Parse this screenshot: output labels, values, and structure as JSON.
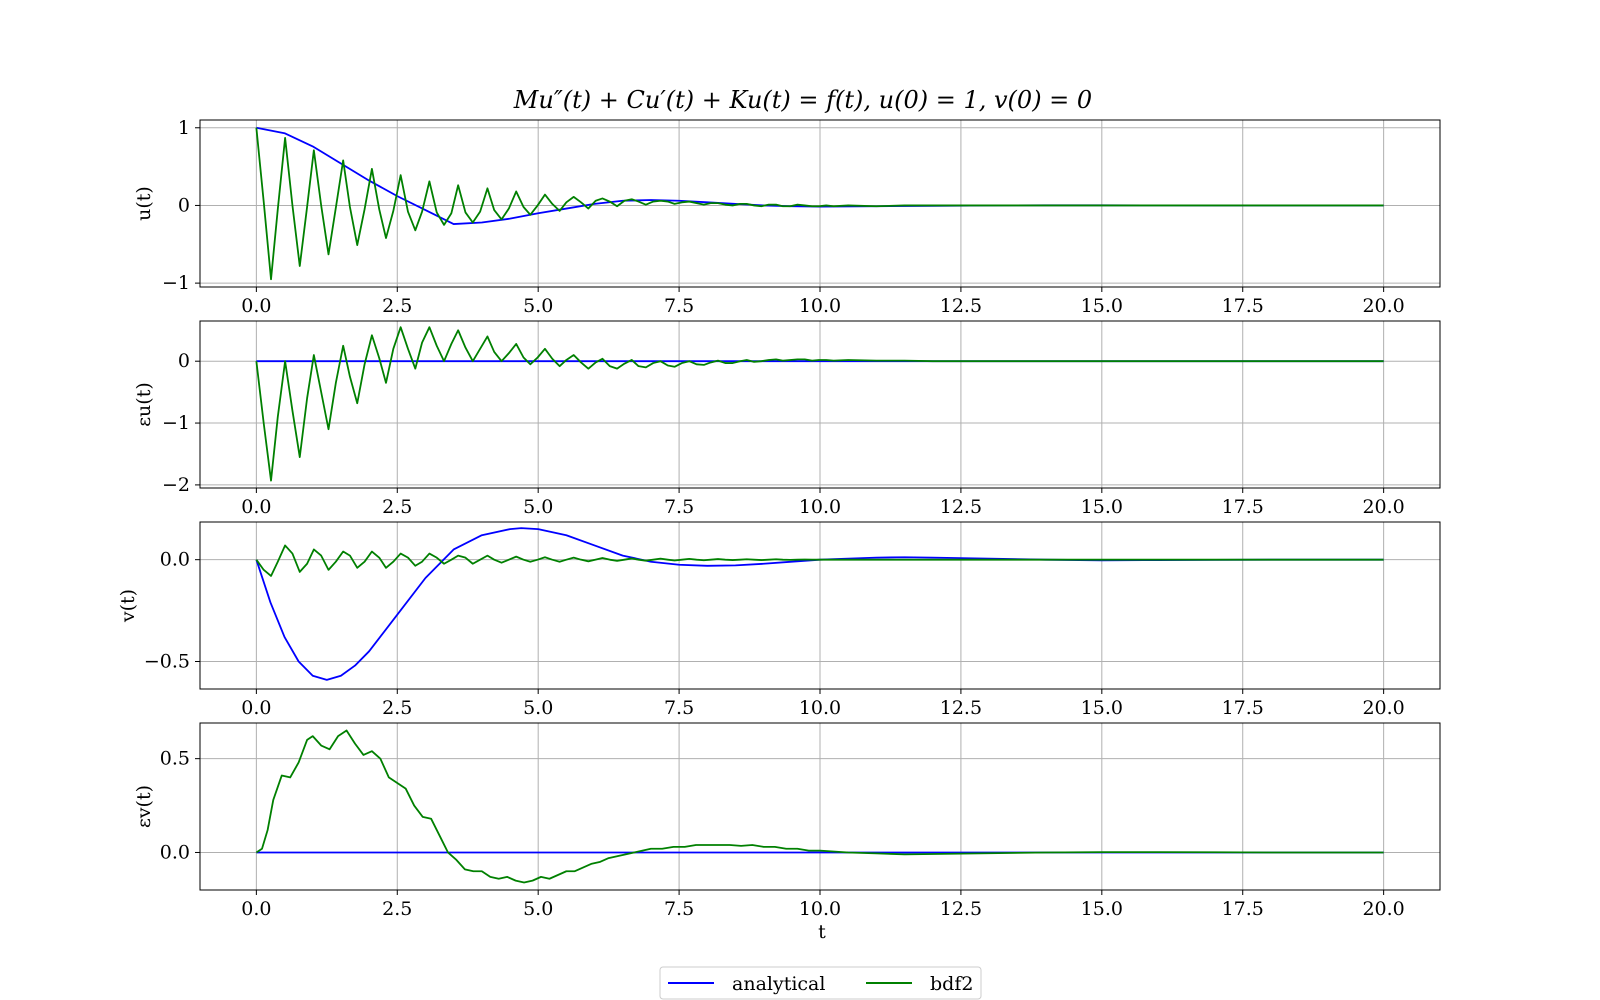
{
  "figure": {
    "title": "Mu″(t) + Cu′(t) + Ku(t) = f(t), u(0) = 1, v(0) = 0",
    "legend": {
      "placement": "bottom-center",
      "ncol": 2
    },
    "colors": {
      "analytical": "#0000ff",
      "bdf2": "#008000",
      "grid": "#b0b0b0"
    }
  },
  "chart_data": [
    {
      "type": "line",
      "ylabel": "u(t)",
      "xlabel": "",
      "xlim": [
        -1,
        21
      ],
      "ylim": [
        -1.05,
        1.1
      ],
      "xticks": [
        0.0,
        2.5,
        5.0,
        7.5,
        10.0,
        12.5,
        15.0,
        17.5,
        20.0
      ],
      "xtick_labels": [
        "0.0",
        "2.5",
        "5.0",
        "7.5",
        "10.0",
        "12.5",
        "15.0",
        "17.5",
        "20.0"
      ],
      "yticks": [
        -1,
        0,
        1
      ],
      "ytick_labels": [
        "−1",
        "0",
        "1"
      ],
      "grid": true,
      "series": [
        {
          "name": "analytical",
          "color": "#0000ff",
          "x": [
            0,
            0.5,
            1,
            1.5,
            2,
            2.5,
            3,
            3.5,
            4,
            4.5,
            5,
            5.5,
            6,
            6.5,
            7,
            7.5,
            8,
            8.5,
            9,
            9.5,
            10,
            11,
            12,
            13,
            14,
            15,
            16,
            17,
            18,
            19,
            20
          ],
          "y": [
            1.0,
            0.93,
            0.76,
            0.54,
            0.32,
            0.12,
            -0.06,
            -0.24,
            -0.22,
            -0.17,
            -0.1,
            -0.04,
            0.02,
            0.06,
            0.07,
            0.06,
            0.04,
            0.02,
            0.0,
            -0.01,
            -0.015,
            -0.01,
            -0.005,
            0.0,
            0.002,
            0.002,
            0.001,
            0.0,
            0.0,
            0.0,
            0.0
          ]
        },
        {
          "name": "bdf2",
          "color": "#008000",
          "x": [
            0,
            0.13,
            0.26,
            0.38,
            0.51,
            0.64,
            0.77,
            0.9,
            1.02,
            1.15,
            1.28,
            1.41,
            1.54,
            1.66,
            1.79,
            1.92,
            2.05,
            2.18,
            2.3,
            2.43,
            2.56,
            2.69,
            2.82,
            2.94,
            3.07,
            3.2,
            3.33,
            3.46,
            3.58,
            3.71,
            3.84,
            3.97,
            4.1,
            4.22,
            4.35,
            4.48,
            4.61,
            4.74,
            4.86,
            4.99,
            5.12,
            5.25,
            5.38,
            5.5,
            5.63,
            5.76,
            5.89,
            6.02,
            6.14,
            6.27,
            6.4,
            6.53,
            6.66,
            6.78,
            6.91,
            7.04,
            7.17,
            7.3,
            7.42,
            7.55,
            7.68,
            7.81,
            7.94,
            8.06,
            8.19,
            8.32,
            8.45,
            8.58,
            8.7,
            8.83,
            8.96,
            9.09,
            9.22,
            9.34,
            9.47,
            9.6,
            9.73,
            9.86,
            9.98,
            10.11,
            10.24,
            10.5,
            11,
            11.5,
            12,
            13,
            14,
            15,
            16,
            17,
            18,
            19,
            20
          ],
          "y": [
            1.0,
            0.05,
            -0.95,
            -0.05,
            0.87,
            0.0,
            -0.78,
            -0.02,
            0.71,
            0.0,
            -0.63,
            -0.03,
            0.58,
            -0.02,
            -0.51,
            -0.05,
            0.47,
            -0.05,
            -0.42,
            -0.07,
            0.39,
            -0.08,
            -0.32,
            -0.08,
            0.31,
            -0.09,
            -0.25,
            -0.1,
            0.26,
            -0.09,
            -0.22,
            -0.08,
            0.22,
            -0.06,
            -0.18,
            -0.04,
            0.18,
            -0.02,
            -0.12,
            0.0,
            0.14,
            0.02,
            -0.07,
            0.04,
            0.11,
            0.04,
            -0.04,
            0.06,
            0.09,
            0.05,
            -0.01,
            0.06,
            0.08,
            0.05,
            0.01,
            0.05,
            0.06,
            0.05,
            0.02,
            0.04,
            0.05,
            0.03,
            0.01,
            0.03,
            0.03,
            0.01,
            0.0,
            0.02,
            0.02,
            0.0,
            -0.01,
            0.01,
            0.01,
            -0.01,
            -0.01,
            0.01,
            0.0,
            -0.01,
            -0.01,
            0.0,
            -0.01,
            0.0,
            -0.01,
            0.0,
            0.0,
            0.0,
            0.0,
            0.0,
            0.0,
            0.0,
            0.0,
            0.0,
            0.0
          ]
        }
      ]
    },
    {
      "type": "line",
      "ylabel": "εu(t)",
      "xlabel": "",
      "xlim": [
        -1,
        21
      ],
      "ylim": [
        -2.05,
        0.65
      ],
      "xticks": [
        0.0,
        2.5,
        5.0,
        7.5,
        10.0,
        12.5,
        15.0,
        17.5,
        20.0
      ],
      "xtick_labels": [
        "0.0",
        "2.5",
        "5.0",
        "7.5",
        "10.0",
        "12.5",
        "15.0",
        "17.5",
        "20.0"
      ],
      "yticks": [
        -2,
        -1,
        0
      ],
      "ytick_labels": [
        "−2",
        "−1",
        "0"
      ],
      "grid": true,
      "series": [
        {
          "name": "analytical",
          "color": "#0000ff",
          "x": [
            0,
            20
          ],
          "y": [
            0,
            0
          ]
        },
        {
          "name": "bdf2",
          "color": "#008000",
          "x": [
            0,
            0.13,
            0.26,
            0.38,
            0.51,
            0.64,
            0.77,
            0.9,
            1.02,
            1.15,
            1.28,
            1.41,
            1.54,
            1.66,
            1.79,
            1.92,
            2.05,
            2.18,
            2.3,
            2.43,
            2.56,
            2.69,
            2.82,
            2.94,
            3.07,
            3.2,
            3.33,
            3.46,
            3.58,
            3.71,
            3.84,
            3.97,
            4.1,
            4.22,
            4.35,
            4.48,
            4.61,
            4.74,
            4.86,
            4.99,
            5.12,
            5.25,
            5.38,
            5.5,
            5.63,
            5.76,
            5.89,
            6.02,
            6.14,
            6.27,
            6.4,
            6.53,
            6.66,
            6.78,
            6.91,
            7.04,
            7.17,
            7.3,
            7.42,
            7.55,
            7.68,
            7.81,
            7.94,
            8.06,
            8.19,
            8.32,
            8.45,
            8.58,
            8.7,
            8.83,
            8.96,
            9.09,
            9.22,
            9.34,
            9.47,
            9.6,
            9.73,
            9.86,
            9.98,
            10.11,
            10.24,
            10.5,
            11,
            11.5,
            12,
            13,
            14,
            15,
            16,
            17,
            18,
            19,
            20
          ],
          "y": [
            0.0,
            -1.0,
            -1.93,
            -0.9,
            0.0,
            -0.8,
            -1.55,
            -0.6,
            0.1,
            -0.5,
            -1.1,
            -0.35,
            0.25,
            -0.25,
            -0.68,
            -0.05,
            0.42,
            0.05,
            -0.35,
            0.2,
            0.55,
            0.2,
            -0.12,
            0.3,
            0.55,
            0.25,
            0.0,
            0.28,
            0.5,
            0.22,
            0.0,
            0.2,
            0.4,
            0.15,
            0.0,
            0.13,
            0.28,
            0.06,
            -0.05,
            0.06,
            0.2,
            0.04,
            -0.08,
            0.02,
            0.1,
            -0.02,
            -0.12,
            -0.02,
            0.04,
            -0.08,
            -0.12,
            -0.04,
            0.02,
            -0.08,
            -0.1,
            -0.03,
            0.0,
            -0.07,
            -0.09,
            -0.03,
            0.0,
            -0.05,
            -0.06,
            -0.02,
            0.01,
            -0.03,
            -0.03,
            0.0,
            0.02,
            -0.01,
            0.0,
            0.02,
            0.03,
            0.01,
            0.02,
            0.03,
            0.03,
            0.01,
            0.02,
            0.02,
            0.01,
            0.02,
            0.01,
            0.01,
            0.0,
            0.0,
            0.0,
            0.0,
            0.0,
            0.0,
            0.0,
            0.0,
            0.0
          ]
        }
      ]
    },
    {
      "type": "line",
      "ylabel": "v(t)",
      "xlabel": "",
      "xlim": [
        -1,
        21
      ],
      "ylim": [
        -0.635,
        0.185
      ],
      "xticks": [
        0.0,
        2.5,
        5.0,
        7.5,
        10.0,
        12.5,
        15.0,
        17.5,
        20.0
      ],
      "xtick_labels": [
        "0.0",
        "2.5",
        "5.0",
        "7.5",
        "10.0",
        "12.5",
        "15.0",
        "17.5",
        "20.0"
      ],
      "yticks": [
        -0.5,
        0.0
      ],
      "ytick_labels": [
        "−0.5",
        "0.0"
      ],
      "grid": true,
      "series": [
        {
          "name": "analytical",
          "color": "#0000ff",
          "x": [
            0,
            0.25,
            0.5,
            0.75,
            1,
            1.25,
            1.5,
            1.75,
            2,
            2.5,
            3,
            3.5,
            4,
            4.5,
            4.7,
            5,
            5.5,
            6,
            6.5,
            7,
            7.5,
            8,
            8.5,
            9,
            9.5,
            10,
            11,
            11.5,
            12,
            13,
            14,
            15,
            16,
            17,
            18,
            19,
            20
          ],
          "y": [
            0.0,
            -0.21,
            -0.38,
            -0.5,
            -0.57,
            -0.59,
            -0.57,
            -0.52,
            -0.45,
            -0.27,
            -0.09,
            0.05,
            0.12,
            0.15,
            0.155,
            0.15,
            0.12,
            0.07,
            0.02,
            -0.01,
            -0.025,
            -0.03,
            -0.028,
            -0.02,
            -0.01,
            0.0,
            0.01,
            0.012,
            0.01,
            0.005,
            0.0,
            -0.003,
            -0.002,
            -0.001,
            0.0,
            0.0,
            0.0
          ]
        },
        {
          "name": "bdf2",
          "color": "#008000",
          "x": [
            0,
            0.13,
            0.26,
            0.38,
            0.51,
            0.64,
            0.77,
            0.9,
            1.02,
            1.15,
            1.28,
            1.41,
            1.54,
            1.66,
            1.79,
            1.92,
            2.05,
            2.18,
            2.3,
            2.43,
            2.56,
            2.69,
            2.82,
            2.94,
            3.07,
            3.2,
            3.33,
            3.46,
            3.58,
            3.71,
            3.84,
            3.97,
            4.1,
            4.22,
            4.35,
            4.48,
            4.61,
            4.74,
            4.86,
            4.99,
            5.12,
            5.25,
            5.38,
            5.5,
            5.63,
            5.76,
            5.89,
            6.02,
            6.14,
            6.27,
            6.4,
            6.53,
            6.66,
            6.78,
            6.91,
            7.04,
            7.17,
            7.3,
            7.42,
            7.55,
            7.68,
            7.81,
            7.94,
            8.06,
            8.19,
            8.32,
            8.45,
            8.58,
            8.7,
            8.83,
            8.96,
            9.09,
            9.22,
            9.34,
            9.47,
            9.6,
            9.73,
            9.86,
            9.98,
            10.5,
            11,
            12,
            13,
            14,
            15,
            16,
            17,
            18,
            19,
            20
          ],
          "y": [
            0.0,
            -0.05,
            -0.08,
            -0.01,
            0.07,
            0.03,
            -0.06,
            -0.02,
            0.05,
            0.02,
            -0.05,
            -0.01,
            0.04,
            0.02,
            -0.04,
            -0.01,
            0.04,
            0.01,
            -0.04,
            -0.01,
            0.03,
            0.01,
            -0.03,
            -0.01,
            0.03,
            0.01,
            -0.02,
            0.0,
            0.02,
            0.01,
            -0.02,
            0.0,
            0.02,
            0.0,
            -0.015,
            0.0,
            0.015,
            0.0,
            -0.01,
            0.0,
            0.012,
            0.0,
            -0.01,
            0.0,
            0.01,
            0.0,
            -0.008,
            0.0,
            0.008,
            0.0,
            -0.006,
            0.0,
            0.006,
            0.0,
            -0.005,
            0.0,
            0.005,
            0.0,
            -0.004,
            0.0,
            0.004,
            0.0,
            -0.003,
            0.0,
            0.003,
            0.0,
            -0.002,
            0.0,
            0.002,
            0.0,
            -0.002,
            0.0,
            0.002,
            0.0,
            -0.001,
            0.0,
            0.001,
            0.0,
            0.0,
            0.0,
            0.0,
            0.0,
            0.0,
            0.0,
            0.0,
            0.0,
            0.0,
            0.0,
            0.0,
            0.0
          ]
        }
      ]
    },
    {
      "type": "line",
      "ylabel": "εv(t)",
      "xlabel": "t",
      "xlim": [
        -1,
        21
      ],
      "ylim": [
        -0.2,
        0.69
      ],
      "xticks": [
        0.0,
        2.5,
        5.0,
        7.5,
        10.0,
        12.5,
        15.0,
        17.5,
        20.0
      ],
      "xtick_labels": [
        "0.0",
        "2.5",
        "5.0",
        "7.5",
        "10.0",
        "12.5",
        "15.0",
        "17.5",
        "20.0"
      ],
      "yticks": [
        0.0,
        0.5
      ],
      "ytick_labels": [
        "0.0",
        "0.5"
      ],
      "grid": true,
      "series": [
        {
          "name": "analytical",
          "color": "#0000ff",
          "x": [
            0,
            20
          ],
          "y": [
            0,
            0
          ]
        },
        {
          "name": "bdf2",
          "color": "#008000",
          "x": [
            0,
            0.1,
            0.2,
            0.3,
            0.45,
            0.6,
            0.75,
            0.9,
            1.0,
            1.15,
            1.3,
            1.45,
            1.6,
            1.75,
            1.9,
            2.05,
            2.2,
            2.35,
            2.5,
            2.65,
            2.8,
            2.95,
            3.1,
            3.25,
            3.4,
            3.55,
            3.7,
            3.85,
            4.0,
            4.15,
            4.3,
            4.45,
            4.6,
            4.75,
            4.9,
            5.05,
            5.2,
            5.35,
            5.5,
            5.65,
            5.8,
            5.95,
            6.1,
            6.25,
            6.4,
            6.55,
            6.7,
            6.85,
            7.0,
            7.2,
            7.4,
            7.6,
            7.8,
            8.0,
            8.2,
            8.4,
            8.6,
            8.8,
            9.0,
            9.2,
            9.4,
            9.6,
            9.8,
            10.0,
            10.5,
            11.0,
            11.5,
            12.0,
            13.0,
            14.0,
            15.0,
            16.0,
            17.0,
            18.0,
            19.0,
            20.0
          ],
          "y": [
            0.0,
            0.02,
            0.12,
            0.28,
            0.41,
            0.4,
            0.48,
            0.6,
            0.62,
            0.57,
            0.55,
            0.62,
            0.65,
            0.58,
            0.52,
            0.54,
            0.5,
            0.4,
            0.37,
            0.34,
            0.25,
            0.19,
            0.18,
            0.09,
            0.0,
            -0.04,
            -0.09,
            -0.1,
            -0.1,
            -0.13,
            -0.14,
            -0.13,
            -0.15,
            -0.16,
            -0.15,
            -0.13,
            -0.14,
            -0.12,
            -0.1,
            -0.1,
            -0.08,
            -0.06,
            -0.05,
            -0.03,
            -0.02,
            -0.01,
            0.0,
            0.01,
            0.02,
            0.02,
            0.03,
            0.03,
            0.04,
            0.04,
            0.04,
            0.04,
            0.035,
            0.04,
            0.03,
            0.03,
            0.02,
            0.02,
            0.01,
            0.01,
            0.0,
            -0.005,
            -0.01,
            -0.008,
            -0.004,
            0.0,
            0.002,
            0.002,
            0.001,
            0.0,
            0.0,
            0.0
          ]
        }
      ]
    }
  ]
}
